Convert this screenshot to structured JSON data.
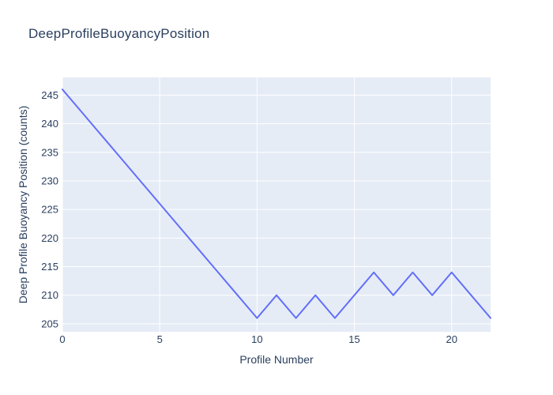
{
  "chart_data": {
    "type": "line",
    "title": "DeepProfileBuoyancyPosition",
    "xlabel": "Profile Number",
    "ylabel": "Deep Profile Buoyancy Position (counts)",
    "x": [
      0,
      1,
      2,
      3,
      4,
      5,
      6,
      7,
      8,
      9,
      10,
      11,
      12,
      13,
      14,
      15,
      16,
      17,
      18,
      19,
      20,
      21,
      22
    ],
    "y": [
      246,
      242,
      238,
      234,
      230,
      226,
      222,
      218,
      214,
      210,
      206,
      210,
      206,
      210,
      206,
      210,
      214,
      210,
      214,
      210,
      214,
      210,
      206
    ],
    "x_ticks": [
      0,
      5,
      10,
      15,
      20
    ],
    "y_ticks": [
      205,
      210,
      215,
      220,
      225,
      230,
      235,
      240,
      245
    ],
    "x_range": [
      0,
      22
    ],
    "y_range": [
      203.6,
      248.1
    ],
    "grid": true,
    "legend_position": "none",
    "colors": {
      "line": "#636efa",
      "plot_background": "#e5ecf6",
      "grid": "#ffffff",
      "text": "#2a3f5f",
      "page_background": "#ffffff"
    }
  }
}
